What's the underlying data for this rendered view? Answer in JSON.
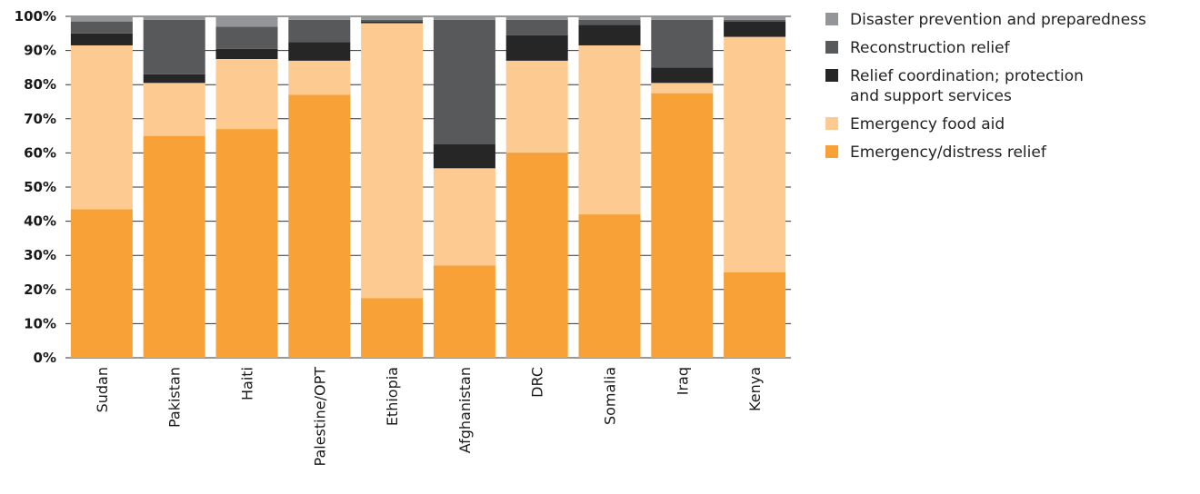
{
  "chart_data": {
    "type": "bar",
    "stacked": true,
    "categories": [
      "Sudan",
      "Pakistan",
      "Haiti",
      "Palestine/OPT",
      "Ethiopia",
      "Afghanistan",
      "DRC",
      "Somalia",
      "Iraq",
      "Kenya"
    ],
    "series": [
      {
        "name": "Emergency/distress relief",
        "color": "#f7a137",
        "values": [
          43.5,
          65,
          67,
          77,
          17.5,
          27,
          60,
          42,
          77.5,
          25
        ]
      },
      {
        "name": "Emergency food aid",
        "color": "#fdcb92",
        "values": [
          48,
          15.5,
          20.5,
          10,
          80.5,
          28.5,
          27,
          49.5,
          3,
          69
        ]
      },
      {
        "name": "Relief coordination; protection and support services",
        "color": "#262626",
        "values": [
          3.5,
          2.5,
          3,
          5.5,
          0.5,
          7,
          7.5,
          6,
          4.5,
          4.5
        ]
      },
      {
        "name": "Reconstruction relief",
        "color": "#58595b",
        "values": [
          3.5,
          16,
          6.5,
          6.5,
          0.5,
          36.5,
          4.5,
          1.5,
          14,
          0.5
        ]
      },
      {
        "name": "Disaster prevention and preparedness",
        "color": "#939598",
        "values": [
          1.5,
          1,
          3,
          1,
          1,
          1,
          1,
          1,
          1,
          1
        ]
      }
    ],
    "legend_order": [
      {
        "name": "Disaster prevention and preparedness",
        "lines": [
          "Disaster prevention and preparedness"
        ],
        "color": "#939598"
      },
      {
        "name": "Reconstruction relief",
        "lines": [
          "Reconstruction relief"
        ],
        "color": "#58595b"
      },
      {
        "name": "Relief coordination; protection and support services",
        "lines": [
          "Relief coordination; protection",
          "and support services"
        ],
        "color": "#262626"
      },
      {
        "name": "Emergency food aid",
        "lines": [
          "Emergency food aid"
        ],
        "color": "#fdcb92"
      },
      {
        "name": "Emergency/distress relief",
        "lines": [
          "Emergency/distress relief"
        ],
        "color": "#f7a137"
      }
    ],
    "yticks": [
      "0%",
      "10%",
      "20%",
      "30%",
      "40%",
      "50%",
      "60%",
      "70%",
      "80%",
      "90%",
      "100%"
    ],
    "ylim": [
      0,
      100
    ],
    "grid": true,
    "legend_position": "right",
    "title": "",
    "xlabel": "",
    "ylabel": ""
  }
}
